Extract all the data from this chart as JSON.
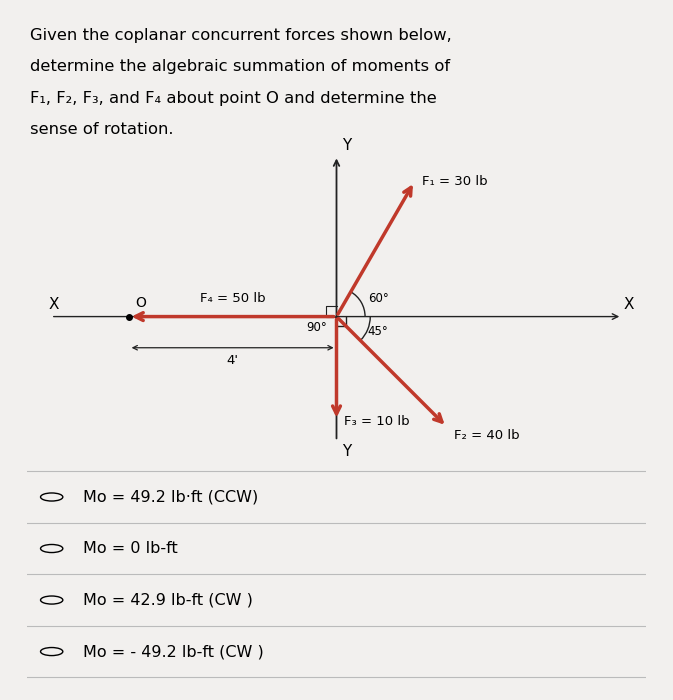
{
  "title_lines": [
    "Given the coplanar concurrent forces shown below,",
    "determine the algebraic summation of moments of",
    "F₁, F₂, F₃, and F₄ about point O and determine the",
    "sense of rotation."
  ],
  "bg_color": "#f2f0ee",
  "diagram": {
    "force_color": "#c0392b",
    "axis_color": "#222222",
    "F1_label": "F₁ = 30 lb",
    "F2_label": "F₂ = 40 lb",
    "F3_label": "F₃ = 10 lb",
    "F4_label": "F₄ = 50 lb",
    "dist_label": "4'",
    "angle1_label": "60°",
    "angle2_label": "45°",
    "angle3_label": "90°"
  },
  "options": [
    "Mo = 49.2 lb·ft (CCW)",
    "Mo = 0 lb-ft",
    "Mo = 42.9 lb-ft (CW )",
    "Mo = - 49.2 lb-ft (CW )"
  ]
}
